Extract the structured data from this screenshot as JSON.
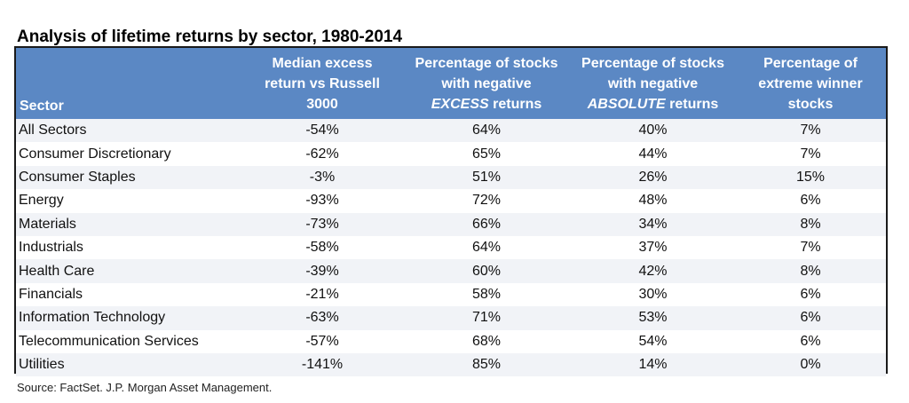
{
  "title": "Analysis of lifetime returns by sector, 1980-2014",
  "source": "Source: FactSet. J.P. Morgan Asset Management.",
  "colors": {
    "header_bg": "#5b88c4",
    "header_text": "#ffffff",
    "stripe": "#f1f3f7",
    "border": "#1a1a1a"
  },
  "headers": {
    "sector": "Sector",
    "median": [
      "Median excess",
      "return vs Russell",
      "3000"
    ],
    "neg_excess": {
      "line1": "Percentage of stocks",
      "line2": "with negative",
      "em": "EXCESS",
      "tail": " returns"
    },
    "neg_absolute": {
      "line1": "Percentage of stocks",
      "line2": "with negative",
      "em": "ABSOLUTE",
      "tail": " returns"
    },
    "extreme": [
      "Percentage of",
      "extreme winner",
      "stocks"
    ]
  },
  "chart_data": {
    "type": "table",
    "title": "Analysis of lifetime returns by sector, 1980-2014",
    "columns": [
      "Sector",
      "Median excess return vs Russell 3000",
      "Percentage of stocks with negative EXCESS returns",
      "Percentage of stocks with negative ABSOLUTE returns",
      "Percentage of extreme winner stocks"
    ],
    "rows": [
      [
        "All Sectors",
        "-54%",
        "64%",
        "40%",
        "7%"
      ],
      [
        "Consumer Discretionary",
        "-62%",
        "65%",
        "44%",
        "7%"
      ],
      [
        "Consumer Staples",
        "-3%",
        "51%",
        "26%",
        "15%"
      ],
      [
        "Energy",
        "-93%",
        "72%",
        "48%",
        "6%"
      ],
      [
        "Materials",
        "-73%",
        "66%",
        "34%",
        "8%"
      ],
      [
        "Industrials",
        "-58%",
        "64%",
        "37%",
        "7%"
      ],
      [
        "Health Care",
        "-39%",
        "60%",
        "42%",
        "8%"
      ],
      [
        "Financials",
        "-21%",
        "58%",
        "30%",
        "6%"
      ],
      [
        "Information Technology",
        "-63%",
        "71%",
        "53%",
        "6%"
      ],
      [
        "Telecommunication Services",
        "-57%",
        "68%",
        "54%",
        "6%"
      ],
      [
        "Utilities",
        "-141%",
        "85%",
        "14%",
        "0%"
      ]
    ]
  }
}
